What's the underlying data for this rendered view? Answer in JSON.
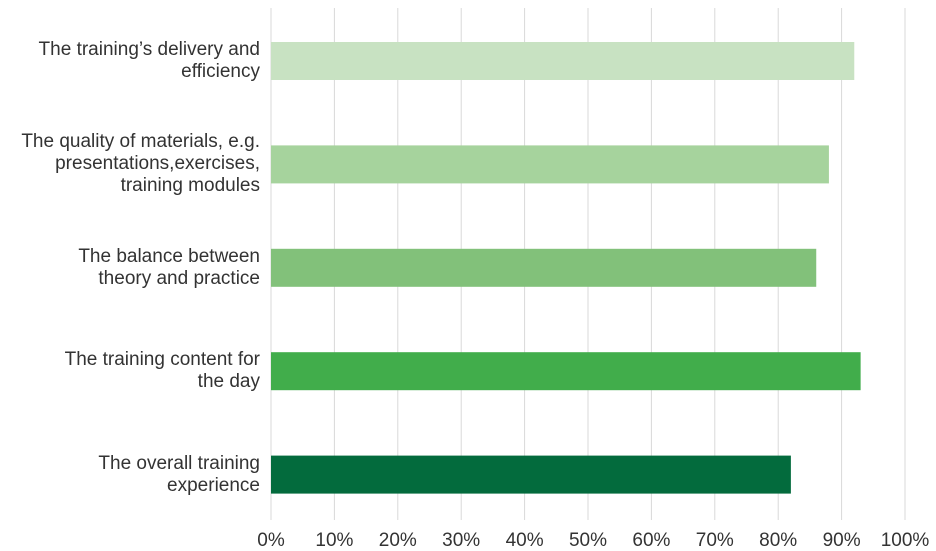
{
  "chart_data": {
    "type": "bar",
    "orientation": "horizontal",
    "title": "",
    "xlabel": "",
    "ylabel": "",
    "xlim": [
      0,
      100
    ],
    "grid": "vertical",
    "legend": "none",
    "categories": [
      [
        "The training’s delivery and",
        "efficiency"
      ],
      [
        "The quality of materials, e.g.",
        "presentations,exercises,",
        "training modules"
      ],
      [
        "The balance between",
        "theory and practice"
      ],
      [
        "The training content for",
        "the day"
      ],
      [
        "The overall training",
        "experience"
      ]
    ],
    "values": [
      92,
      88,
      86,
      93,
      82
    ],
    "colors": [
      "#c8e2c2",
      "#a6d39d",
      "#82c17a",
      "#41ad4b",
      "#036b3d"
    ],
    "ticks": [
      "0%",
      "10%",
      "20%",
      "30%",
      "40%",
      "50%",
      "60%",
      "70%",
      "80%",
      "90%",
      "100%"
    ]
  }
}
